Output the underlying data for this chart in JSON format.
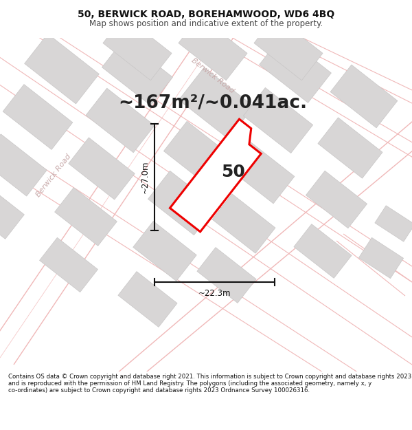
{
  "title": "50, BERWICK ROAD, BOREHAMWOOD, WD6 4BQ",
  "subtitle": "Map shows position and indicative extent of the property.",
  "area_text": "~167m²/~0.041ac.",
  "label_50": "50",
  "dim_height": "~27.0m",
  "dim_width": "~22.3m",
  "footer": "Contains OS data © Crown copyright and database right 2021. This information is subject to Crown copyright and database rights 2023 and is reproduced with the permission of HM Land Registry. The polygons (including the associated geometry, namely x, y co-ordinates) are subject to Crown copyright and database rights 2023 Ordnance Survey 100026316.",
  "map_bg": "#f2f0f0",
  "road_line_color": "#f0b8b8",
  "building_color": "#d8d6d6",
  "building_edge_color": "#c8c6c6",
  "plot_color": "#ee0000",
  "plot_fill": "#ffffff",
  "dim_color": "#111111",
  "road_label_color": "#c8aaaa",
  "fig_width": 6.0,
  "fig_height": 6.25,
  "title_fontsize": 10,
  "subtitle_fontsize": 8.5,
  "area_fontsize": 19,
  "label_fontsize": 18,
  "dim_fontsize": 8.5,
  "footer_fontsize": 6.2
}
